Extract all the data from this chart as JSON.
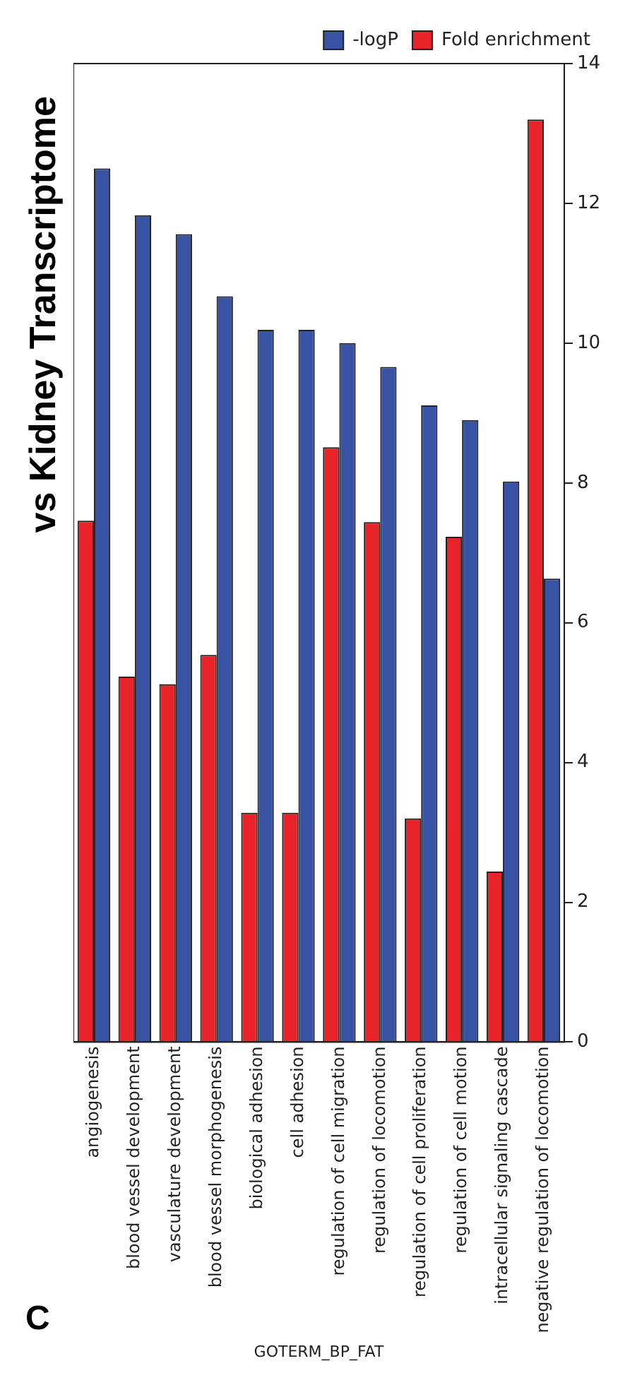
{
  "chart_data": {
    "type": "bar",
    "title": "vs Kidney Transcriptome",
    "xlabel": "GOTERM_BP_FAT",
    "categories": [
      "angiogenesis",
      "blood vessel development",
      "vasculature development",
      "blood vessel morphogenesis",
      "biological adhesion",
      "cell adhesion",
      "regulation of cell migration",
      "regulation of locomotion",
      "regulation of cell proliferation",
      "regulation of cell motion",
      "intracellular signaling cascade",
      "negative regulation of locomotion"
    ],
    "series": [
      {
        "name": "Fold enrichment",
        "color": "#e8232a",
        "values": [
          7.46,
          5.23,
          5.12,
          5.54,
          3.28,
          3.28,
          8.51,
          7.44,
          3.2,
          7.23,
          2.44,
          13.2
        ]
      },
      {
        "name": "-logP",
        "color": "#3953a4",
        "values": [
          12.5,
          11.83,
          11.56,
          10.67,
          10.19,
          10.19,
          10.0,
          9.66,
          9.11,
          8.9,
          8.02,
          6.63
        ]
      }
    ],
    "ylim": [
      0,
      14
    ],
    "yticks": [
      0,
      2,
      4,
      6,
      8,
      10,
      12,
      14
    ],
    "grid": false,
    "legend": "top right",
    "annotations": [
      "C"
    ]
  }
}
